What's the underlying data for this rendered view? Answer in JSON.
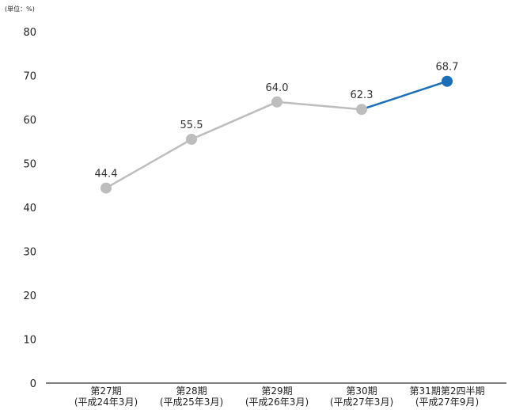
{
  "chart_data": {
    "type": "line",
    "unit_label": "(単位：%)",
    "categories": [
      [
        "第27期",
        "(平成24年3月)"
      ],
      [
        "第28期",
        "(平成25年3月)"
      ],
      [
        "第29期",
        "(平成26年3月)"
      ],
      [
        "第30期",
        "(平成27年3月)"
      ],
      [
        "第31期第2四半期",
        "(平成27年9月)"
      ]
    ],
    "values": [
      44.4,
      55.5,
      64.0,
      62.3,
      68.7
    ],
    "value_labels": [
      "44.4",
      "55.5",
      "64.0",
      "62.3",
      "68.7"
    ],
    "ylim": [
      0,
      80
    ],
    "yticks": [
      "0",
      "10",
      "20",
      "30",
      "40",
      "50",
      "60",
      "70",
      "80"
    ],
    "grid": false,
    "colors": {
      "past": "#bdbdbd",
      "latest": "#1a6fb8",
      "axis": "#333333"
    },
    "highlight_last": true
  }
}
